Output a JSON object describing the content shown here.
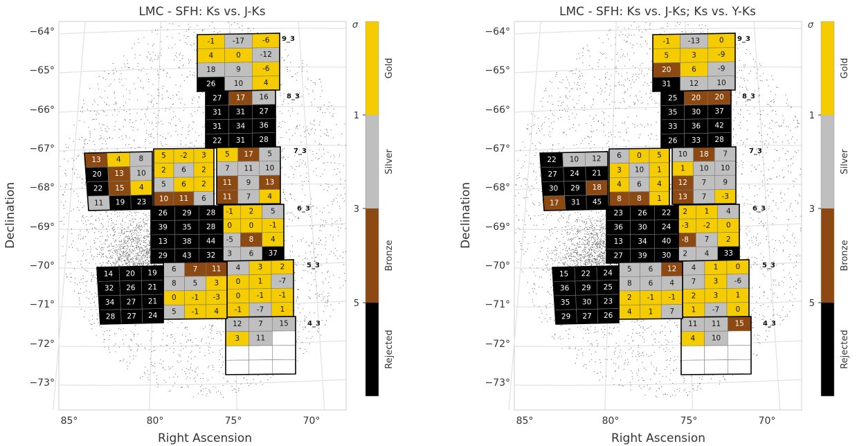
{
  "colors": {
    "Gold": "#f5cc00",
    "Silver": "#bfbfbf",
    "Bronze": "#8c4a12",
    "Rejected": "#000000",
    "empty": "#ffffff"
  },
  "chart_data": [
    {
      "type": "heatmap",
      "title": "LMC - SFH: Ks vs. J-Ks",
      "xlabel": "Right Ascension",
      "ylabel": "Declination",
      "xticks": [
        "85°",
        "80°",
        "75°",
        "70°"
      ],
      "yticks": [
        "−64°",
        "−65°",
        "−66°",
        "−67°",
        "−68°",
        "−69°",
        "−70°",
        "−71°",
        "−72°",
        "−73°"
      ],
      "xlim": [
        84.2,
        68.0
      ],
      "ylim": [
        -73.8,
        -63.8
      ],
      "colorbar": {
        "label": "σ",
        "ticks": [
          "1",
          "3",
          "5"
        ],
        "classes": [
          "Gold",
          "Silver",
          "Bronze",
          "Rejected"
        ]
      },
      "tile_labels": [
        "9_3",
        "8_3",
        "7_3",
        "6_3",
        "5_3",
        "4_3"
      ],
      "tiles": [
        {
          "name": "9_3",
          "values": [
            [
              "-1",
              "-17",
              "-6"
            ],
            [
              "4",
              "0",
              "-12"
            ],
            [
              "18",
              "9",
              "-6"
            ],
            [
              "26",
              "10",
              "4"
            ]
          ],
          "classes": [
            [
              "G",
              "S",
              "G"
            ],
            [
              "G",
              "G",
              "S"
            ],
            [
              "S",
              "S",
              "G"
            ],
            [
              "R",
              "S",
              "G"
            ]
          ]
        },
        {
          "name": "8_3",
          "values": [
            [
              "27",
              "17",
              "16"
            ],
            [
              "31",
              "31",
              "27"
            ],
            [
              "31",
              "34",
              "36"
            ],
            [
              "22",
              "31",
              "28"
            ]
          ],
          "classes": [
            [
              "R",
              "B",
              "S"
            ],
            [
              "R",
              "R",
              "R"
            ],
            [
              "R",
              "R",
              "R"
            ],
            [
              "R",
              "R",
              "R"
            ]
          ]
        },
        {
          "name": "7_3",
          "values": [
            [
              "5",
              "17",
              "5"
            ],
            [
              "7",
              "11",
              "10"
            ],
            [
              "11",
              "9",
              "13"
            ],
            [
              "11",
              "7",
              "4"
            ]
          ],
          "classes": [
            [
              "G",
              "B",
              "S"
            ],
            [
              "S",
              "S",
              "S"
            ],
            [
              "B",
              "S",
              "B"
            ],
            [
              "B",
              "S",
              "G"
            ]
          ]
        },
        {
          "name": "6_3",
          "values": [
            [
              "-1",
              "2",
              "5"
            ],
            [
              "0",
              "0",
              "-1"
            ],
            [
              "-5",
              "8",
              "4"
            ],
            [
              "3",
              "6",
              "37"
            ]
          ],
          "classes": [
            [
              "G",
              "G",
              "S"
            ],
            [
              "G",
              "G",
              "G"
            ],
            [
              "S",
              "B",
              "G"
            ],
            [
              "S",
              "S",
              "R"
            ]
          ]
        },
        {
          "name": "5_3",
          "values": [
            [
              "4",
              "3",
              "2"
            ],
            [
              "0",
              "1",
              "-7"
            ],
            [
              "0",
              "-1",
              "-1"
            ],
            [
              "-1",
              "-7",
              "1"
            ]
          ],
          "classes": [
            [
              "S",
              "G",
              "G"
            ],
            [
              "G",
              "G",
              "S"
            ],
            [
              "G",
              "G",
              "G"
            ],
            [
              "G",
              "S",
              "G"
            ]
          ]
        },
        {
          "name": "4_3",
          "values": [
            [
              "12",
              "7",
              "15"
            ],
            [
              "3",
              "11",
              ""
            ],
            [
              "",
              "",
              ""
            ],
            [
              "",
              "",
              ""
            ]
          ],
          "classes": [
            [
              "S",
              "S",
              "S"
            ],
            [
              "G",
              "S",
              "E"
            ],
            [
              "E",
              "E",
              "E"
            ],
            [
              "E",
              "E",
              "E"
            ]
          ]
        },
        {
          "name": "8_4",
          "values": [
            [
              "13",
              "4",
              "8"
            ],
            [
              "20",
              "13",
              "10"
            ],
            [
              "22",
              "15",
              "4"
            ],
            [
              "11",
              "19",
              "23"
            ]
          ],
          "classes": [
            [
              "B",
              "G",
              "S"
            ],
            [
              "R",
              "B",
              "S"
            ],
            [
              "R",
              "B",
              "G"
            ],
            [
              "S",
              "R",
              "R"
            ]
          ]
        },
        {
          "name": "7_4",
          "values": [
            [
              "5",
              "-2",
              "3"
            ],
            [
              "2",
              "6",
              "2"
            ],
            [
              "5",
              "6",
              "2"
            ],
            [
              "10",
              "11",
              "6"
            ]
          ],
          "classes": [
            [
              "G",
              "G",
              "G"
            ],
            [
              "G",
              "S",
              "G"
            ],
            [
              "S",
              "G",
              "G"
            ],
            [
              "B",
              "B",
              "S"
            ]
          ]
        },
        {
          "name": "6_4",
          "values": [
            [
              "26",
              "29",
              "28"
            ],
            [
              "39",
              "35",
              "28"
            ],
            [
              "13",
              "38",
              "44"
            ],
            [
              "29",
              "43",
              "32"
            ]
          ],
          "classes": [
            [
              "R",
              "R",
              "R"
            ],
            [
              "R",
              "R",
              "R"
            ],
            [
              "R",
              "R",
              "R"
            ],
            [
              "R",
              "R",
              "R"
            ]
          ]
        },
        {
          "name": "5_4",
          "values": [
            [
              "6",
              "7",
              "11"
            ],
            [
              "8",
              "5",
              "3"
            ],
            [
              "0",
              "-1",
              "-3"
            ],
            [
              "5",
              "-1",
              "4"
            ]
          ],
          "classes": [
            [
              "S",
              "B",
              "B"
            ],
            [
              "S",
              "S",
              "G"
            ],
            [
              "G",
              "G",
              "G"
            ],
            [
              "S",
              "G",
              "G"
            ]
          ]
        },
        {
          "name": "5_5",
          "values": [
            [
              "14",
              "20",
              "19"
            ],
            [
              "32",
              "26",
              "21"
            ],
            [
              "34",
              "27",
              "21"
            ],
            [
              "28",
              "27",
              "24"
            ]
          ],
          "classes": [
            [
              "R",
              "R",
              "R"
            ],
            [
              "R",
              "R",
              "R"
            ],
            [
              "R",
              "R",
              "R"
            ],
            [
              "R",
              "R",
              "R"
            ]
          ]
        }
      ]
    },
    {
      "type": "heatmap",
      "title": "LMC - SFH: Ks vs. J-Ks; Ks vs. Y-Ks",
      "xlabel": "Right Ascension",
      "ylabel": "Declination",
      "xticks": [
        "85°",
        "80°",
        "75°",
        "70°"
      ],
      "yticks": [
        "−64°",
        "−65°",
        "−66°",
        "−67°",
        "−68°",
        "−69°",
        "−70°",
        "−71°",
        "−72°",
        "−73°"
      ],
      "xlim": [
        84.2,
        68.0
      ],
      "ylim": [
        -73.8,
        -63.8
      ],
      "colorbar": {
        "label": "σ",
        "ticks": [
          "1",
          "3",
          "5"
        ],
        "classes": [
          "Gold",
          "Silver",
          "Bronze",
          "Rejected"
        ]
      },
      "tile_labels": [
        "9_3",
        "8_3",
        "7_3",
        "6_3",
        "5_3",
        "4_3"
      ],
      "tiles": [
        {
          "name": "9_3",
          "values": [
            [
              "-1",
              "-13",
              "0"
            ],
            [
              "5",
              "3",
              "-9"
            ],
            [
              "20",
              "6",
              "-9"
            ],
            [
              "31",
              "12",
              "10"
            ]
          ],
          "classes": [
            [
              "G",
              "S",
              "G"
            ],
            [
              "G",
              "G",
              "G"
            ],
            [
              "B",
              "G",
              "S"
            ],
            [
              "R",
              "S",
              "S"
            ]
          ]
        },
        {
          "name": "8_3",
          "values": [
            [
              "25",
              "20",
              "20"
            ],
            [
              "35",
              "30",
              "37"
            ],
            [
              "33",
              "36",
              "42"
            ],
            [
              "26",
              "33",
              "28"
            ]
          ],
          "classes": [
            [
              "R",
              "B",
              "B"
            ],
            [
              "R",
              "R",
              "R"
            ],
            [
              "R",
              "R",
              "R"
            ],
            [
              "R",
              "R",
              "R"
            ]
          ]
        },
        {
          "name": "7_3",
          "values": [
            [
              "10",
              "18",
              "7"
            ],
            [
              "1",
              "10",
              "10"
            ],
            [
              "12",
              "7",
              "9"
            ],
            [
              "13",
              "7",
              "-3"
            ]
          ],
          "classes": [
            [
              "S",
              "B",
              "S"
            ],
            [
              "G",
              "S",
              "S"
            ],
            [
              "B",
              "S",
              "S"
            ],
            [
              "B",
              "S",
              "G"
            ]
          ]
        },
        {
          "name": "6_3",
          "values": [
            [
              "2",
              "1",
              "4"
            ],
            [
              "-3",
              "-2",
              "0"
            ],
            [
              "-8",
              "7",
              "2"
            ],
            [
              "2",
              "4",
              "33"
            ]
          ],
          "classes": [
            [
              "G",
              "G",
              "S"
            ],
            [
              "G",
              "G",
              "G"
            ],
            [
              "B",
              "S",
              "G"
            ],
            [
              "S",
              "S",
              "R"
            ]
          ]
        },
        {
          "name": "5_3",
          "values": [
            [
              "4",
              "1",
              "0"
            ],
            [
              "7",
              "3",
              "-6"
            ],
            [
              "2",
              "3",
              "1"
            ],
            [
              "1",
              "-7",
              "0"
            ]
          ],
          "classes": [
            [
              "S",
              "G",
              "G"
            ],
            [
              "S",
              "G",
              "S"
            ],
            [
              "G",
              "G",
              "G"
            ],
            [
              "G",
              "S",
              "G"
            ]
          ]
        },
        {
          "name": "4_3",
          "values": [
            [
              "11",
              "11",
              "15"
            ],
            [
              "4",
              "10",
              ""
            ],
            [
              "",
              "",
              ""
            ],
            [
              "",
              "",
              ""
            ]
          ],
          "classes": [
            [
              "S",
              "S",
              "B"
            ],
            [
              "G",
              "S",
              "E"
            ],
            [
              "E",
              "E",
              "E"
            ],
            [
              "E",
              "E",
              "E"
            ]
          ]
        },
        {
          "name": "8_4",
          "values": [
            [
              "22",
              "10",
              "12"
            ],
            [
              "27",
              "24",
              "21"
            ],
            [
              "30",
              "29",
              "18"
            ],
            [
              "17",
              "31",
              "45"
            ]
          ],
          "classes": [
            [
              "R",
              "S",
              "S"
            ],
            [
              "R",
              "R",
              "R"
            ],
            [
              "R",
              "R",
              "B"
            ],
            [
              "B",
              "R",
              "R"
            ]
          ]
        },
        {
          "name": "7_4",
          "values": [
            [
              "6",
              "0",
              "5"
            ],
            [
              "3",
              "10",
              "1"
            ],
            [
              "4",
              "6",
              "4"
            ],
            [
              "8",
              "8",
              "1"
            ]
          ],
          "classes": [
            [
              "S",
              "G",
              "G"
            ],
            [
              "G",
              "S",
              "G"
            ],
            [
              "G",
              "S",
              "G"
            ],
            [
              "B",
              "B",
              "G"
            ]
          ]
        },
        {
          "name": "6_4",
          "values": [
            [
              "23",
              "26",
              "22"
            ],
            [
              "36",
              "30",
              "24"
            ],
            [
              "13",
              "34",
              "40"
            ],
            [
              "27",
              "39",
              "30"
            ]
          ],
          "classes": [
            [
              "R",
              "R",
              "R"
            ],
            [
              "R",
              "R",
              "R"
            ],
            [
              "R",
              "R",
              "R"
            ],
            [
              "R",
              "R",
              "R"
            ]
          ]
        },
        {
          "name": "5_4",
          "values": [
            [
              "5",
              "6",
              "12"
            ],
            [
              "8",
              "6",
              "4"
            ],
            [
              "2",
              "-1",
              "-1"
            ],
            [
              "4",
              "1",
              "7"
            ]
          ],
          "classes": [
            [
              "S",
              "S",
              "B"
            ],
            [
              "S",
              "S",
              "S"
            ],
            [
              "G",
              "G",
              "G"
            ],
            [
              "G",
              "G",
              "S"
            ]
          ]
        },
        {
          "name": "5_5",
          "values": [
            [
              "15",
              "22",
              "24"
            ],
            [
              "36",
              "29",
              "25"
            ],
            [
              "35",
              "30",
              "23"
            ],
            [
              "29",
              "27",
              "26"
            ]
          ],
          "classes": [
            [
              "R",
              "R",
              "R"
            ],
            [
              "R",
              "R",
              "R"
            ],
            [
              "R",
              "R",
              "R"
            ],
            [
              "R",
              "R",
              "R"
            ]
          ]
        }
      ]
    }
  ]
}
